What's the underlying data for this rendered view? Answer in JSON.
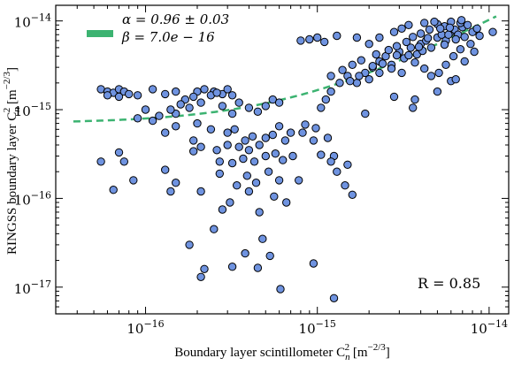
{
  "chart_data": {
    "type": "scatter",
    "xlabel": "Boundary layer scintillometer C",
    "xlabel_sub": "n",
    "xlabel_sup": "2",
    "xlabel_unit": " [m",
    "xlabel_unit_sup": "−2/3",
    "xlabel_unit_end": "]",
    "ylabel": "RINGSS boundary layer C",
    "ylabel_sub": "n",
    "ylabel_sup": "2",
    "ylabel_unit": " [m",
    "ylabel_unit_sup": "−2/3",
    "ylabel_unit_end": "]",
    "x_scale": "log",
    "y_scale": "log",
    "xlim": [
      3e-17,
      1.3e-14
    ],
    "ylim": [
      5e-18,
      1.5e-14
    ],
    "x_ticks": [
      {
        "value": 1e-16,
        "mantissa": "10",
        "exp": "−16"
      },
      {
        "value": 1e-15,
        "mantissa": "10",
        "exp": "−15"
      },
      {
        "value": 1e-14,
        "mantissa": "10",
        "exp": "−14"
      }
    ],
    "y_ticks": [
      {
        "value": 1e-17,
        "mantissa": "10",
        "exp": "−17"
      },
      {
        "value": 1e-16,
        "mantissa": "10",
        "exp": "−16"
      },
      {
        "value": 1e-15,
        "mantissa": "10",
        "exp": "−15"
      },
      {
        "value": 1e-14,
        "mantissa": "10",
        "exp": "−14"
      }
    ],
    "grid": false,
    "legend_position": "top-left",
    "legend_lines": [
      "α = 0.96 ± 0.03",
      "β = 7.0e − 16"
    ],
    "annotation": "R = 0.85",
    "fit": {
      "alpha": 0.96,
      "beta": 7e-16,
      "color": "#3cb371",
      "style": "dashed"
    },
    "marker_color": "#6f93e0",
    "marker_edge": "#000000",
    "points": [
      [
        5.5e-17,
        1.7e-15
      ],
      [
        6e-17,
        1.6e-15
      ],
      [
        6.5e-17,
        1.55e-15
      ],
      [
        7e-17,
        1.7e-15
      ],
      [
        7.5e-17,
        1.6e-15
      ],
      [
        8e-17,
        1.5e-15
      ],
      [
        6e-17,
        1.45e-15
      ],
      [
        7e-17,
        1.4e-15
      ],
      [
        9e-17,
        1.45e-15
      ],
      [
        1.1e-16,
        1.7e-15
      ],
      [
        1.3e-16,
        1.5e-15
      ],
      [
        1.5e-16,
        1.6e-15
      ],
      [
        1.7e-16,
        1.3e-15
      ],
      [
        2e-16,
        1.6e-15
      ],
      [
        2.2e-16,
        1.7e-15
      ],
      [
        2.5e-16,
        1.6e-15
      ],
      [
        2.8e-16,
        1.5e-15
      ],
      [
        3e-16,
        1.7e-15
      ],
      [
        3.2e-16,
        1.45e-15
      ],
      [
        2.4e-16,
        1.45e-15
      ],
      [
        2.6e-16,
        1.55e-15
      ],
      [
        1.9e-16,
        1.4e-15
      ],
      [
        1.6e-16,
        1.15e-15
      ],
      [
        1.8e-16,
        1.05e-15
      ],
      [
        2.1e-16,
        1.2e-15
      ],
      [
        1.5e-16,
        9e-16
      ],
      [
        1.4e-16,
        1e-15
      ],
      [
        1.2e-16,
        8.5e-16
      ],
      [
        1.1e-16,
        7.5e-16
      ],
      [
        1e-16,
        1e-15
      ],
      [
        9e-17,
        8e-16
      ],
      [
        1.5e-16,
        6.5e-16
      ],
      [
        1.3e-16,
        5.5e-16
      ],
      [
        2e-16,
        7e-16
      ],
      [
        2.4e-16,
        6e-16
      ],
      [
        2.8e-16,
        1.1e-15
      ],
      [
        3.2e-16,
        9e-16
      ],
      [
        3.5e-16,
        1.2e-15
      ],
      [
        4e-16,
        1.05e-15
      ],
      [
        4.5e-16,
        9.5e-16
      ],
      [
        5e-16,
        1.1e-15
      ],
      [
        5.5e-16,
        1.3e-15
      ],
      [
        6e-16,
        1.2e-15
      ],
      [
        3e-16,
        5.5e-16
      ],
      [
        3.3e-16,
        6e-16
      ],
      [
        3.8e-16,
        4.5e-16
      ],
      [
        4.2e-16,
        5e-16
      ],
      [
        4.6e-16,
        4e-16
      ],
      [
        5e-16,
        4.8e-16
      ],
      [
        5.5e-16,
        5.2e-16
      ],
      [
        6e-16,
        6.5e-16
      ],
      [
        6.5e-16,
        4.5e-16
      ],
      [
        7e-16,
        5.5e-16
      ],
      [
        4e-16,
        3.5e-16
      ],
      [
        3.5e-16,
        3.8e-16
      ],
      [
        3e-16,
        4e-16
      ],
      [
        2.6e-16,
        3.5e-16
      ],
      [
        2.7e-16,
        2.6e-16
      ],
      [
        3.2e-16,
        2.5e-16
      ],
      [
        3.7e-16,
        2.8e-16
      ],
      [
        4.3e-16,
        2.6e-16
      ],
      [
        5e-16,
        3e-16
      ],
      [
        5.7e-16,
        3.2e-16
      ],
      [
        6.3e-16,
        2.7e-16
      ],
      [
        7.2e-16,
        3e-16
      ],
      [
        2.1e-16,
        3.8e-16
      ],
      [
        1.9e-16,
        3.4e-16
      ],
      [
        5.5e-17,
        2.6e-16
      ],
      [
        7e-17,
        3.3e-16
      ],
      [
        1.9e-16,
        4.5e-16
      ],
      [
        7.5e-17,
        2.6e-16
      ],
      [
        8.5e-17,
        1.6e-16
      ],
      [
        1.3e-16,
        2.1e-16
      ],
      [
        1.5e-16,
        1.5e-16
      ],
      [
        1.4e-16,
        1.2e-16
      ],
      [
        2.1e-16,
        1.2e-16
      ],
      [
        2.7e-16,
        1.9e-16
      ],
      [
        3.4e-16,
        1.4e-16
      ],
      [
        3.9e-16,
        1.8e-16
      ],
      [
        4.4e-16,
        1.5e-16
      ],
      [
        5.2e-16,
        2e-16
      ],
      [
        6e-16,
        1.6e-16
      ],
      [
        6.5e-17,
        1.25e-16
      ],
      [
        3.1e-16,
        9e-17
      ],
      [
        4e-16,
        1.2e-16
      ],
      [
        4.6e-16,
        7e-17
      ],
      [
        5.6e-16,
        1.05e-16
      ],
      [
        6.6e-16,
        9e-17
      ],
      [
        7.8e-16,
        1.6e-16
      ],
      [
        2.8e-16,
        7.5e-17
      ],
      [
        2.5e-16,
        4.5e-17
      ],
      [
        1.8e-16,
        3e-17
      ],
      [
        3.8e-16,
        2.4e-17
      ],
      [
        4.8e-16,
        3.5e-17
      ],
      [
        2.2e-16,
        1.6e-17
      ],
      [
        2.1e-16,
        1.3e-17
      ],
      [
        3.2e-16,
        1.7e-17
      ],
      [
        4.5e-16,
        1.65e-17
      ],
      [
        6.1e-16,
        9.5e-18
      ],
      [
        9.5e-16,
        1.85e-17
      ],
      [
        1.25e-15,
        7.5e-18
      ],
      [
        5.3e-16,
        2.25e-17
      ],
      [
        8.2e-16,
        5.5e-16
      ],
      [
        9.5e-16,
        4.5e-16
      ],
      [
        1.05e-15,
        3.1e-16
      ],
      [
        1.25e-15,
        3e-16
      ],
      [
        1.3e-15,
        2e-16
      ],
      [
        1.5e-15,
        2.4e-16
      ],
      [
        1.45e-15,
        1.4e-16
      ],
      [
        1.6e-15,
        1.1e-16
      ],
      [
        1.2e-15,
        2.6e-16
      ],
      [
        1.15e-15,
        4.8e-16
      ],
      [
        9.8e-16,
        6.2e-16
      ],
      [
        8.5e-16,
        6.8e-16
      ],
      [
        1.05e-15,
        1.05e-15
      ],
      [
        1.12e-15,
        1.3e-15
      ],
      [
        1.2e-15,
        1.6e-15
      ],
      [
        1.35e-15,
        2e-15
      ],
      [
        1.5e-15,
        2.4e-15
      ],
      [
        1.7e-15,
        2e-15
      ],
      [
        1.9e-15,
        2.6e-15
      ],
      [
        2.1e-15,
        3e-15
      ],
      [
        2.3e-15,
        3.5e-15
      ],
      [
        2.5e-15,
        4e-15
      ],
      [
        2.7e-15,
        3.2e-15
      ],
      [
        3e-15,
        4.5e-15
      ],
      [
        3.2e-15,
        3.8e-15
      ],
      [
        3.5e-15,
        5e-15
      ],
      [
        3.8e-15,
        4.2e-15
      ],
      [
        4e-15,
        5.5e-15
      ],
      [
        4.3e-15,
        6e-15
      ],
      [
        4.6e-15,
        5e-15
      ],
      [
        5e-15,
        6.5e-15
      ],
      [
        5.3e-15,
        7e-15
      ],
      [
        5.6e-15,
        6e-15
      ],
      [
        6e-15,
        7.5e-15
      ],
      [
        6.3e-15,
        8e-15
      ],
      [
        6.6e-15,
        7e-15
      ],
      [
        7e-15,
        8.5e-15
      ],
      [
        7.5e-15,
        9e-15
      ],
      [
        8e-15,
        7.5e-15
      ],
      [
        8.5e-15,
        8.2e-15
      ],
      [
        6.8e-15,
        9.5e-15
      ],
      [
        6e-15,
        9.8e-15
      ],
      [
        5.5e-15,
        8.7e-15
      ],
      [
        5e-15,
        9.2e-15
      ],
      [
        4.5e-15,
        8e-15
      ],
      [
        4e-15,
        7.2e-15
      ],
      [
        3.6e-15,
        6.6e-15
      ],
      [
        3.3e-15,
        5.8e-15
      ],
      [
        2.9e-15,
        5.2e-15
      ],
      [
        2.6e-15,
        4.7e-15
      ],
      [
        2.2e-15,
        4.2e-15
      ],
      [
        1.8e-15,
        3.6e-15
      ],
      [
        1.6e-15,
        3.2e-15
      ],
      [
        1.4e-15,
        2.8e-15
      ],
      [
        1.2e-15,
        2.4e-15
      ],
      [
        1.1e-15,
        5.8e-15
      ],
      [
        9e-16,
        6.2e-15
      ],
      [
        8e-16,
        6e-15
      ],
      [
        1e-15,
        6.5e-15
      ],
      [
        1.3e-15,
        6.8e-15
      ],
      [
        1.7e-15,
        6.5e-15
      ],
      [
        2e-15,
        5.5e-15
      ],
      [
        2.3e-15,
        6.5e-15
      ],
      [
        2.8e-15,
        7.5e-15
      ],
      [
        3.1e-15,
        8.2e-15
      ],
      [
        3.4e-15,
        9e-15
      ],
      [
        4.2e-15,
        9.5e-15
      ],
      [
        4.8e-15,
        9.8e-15
      ],
      [
        5.2e-15,
        8.2e-15
      ],
      [
        5.8e-15,
        7e-15
      ],
      [
        6.4e-15,
        6.2e-15
      ],
      [
        7.2e-15,
        6.6e-15
      ],
      [
        8.8e-15,
        6.8e-15
      ],
      [
        1.05e-14,
        7.5e-15
      ],
      [
        7.8e-15,
        5.5e-15
      ],
      [
        6.8e-15,
        4.8e-15
      ],
      [
        6.2e-15,
        4e-15
      ],
      [
        5.6e-15,
        3.2e-15
      ],
      [
        5.1e-15,
        2.6e-15
      ],
      [
        4.6e-15,
        2.4e-15
      ],
      [
        4.2e-15,
        2.9e-15
      ],
      [
        3.7e-15,
        3.4e-15
      ],
      [
        3.1e-15,
        2.6e-15
      ],
      [
        2.7e-15,
        2.9e-15
      ],
      [
        2.3e-15,
        2.6e-15
      ],
      [
        2e-15,
        2.2e-15
      ],
      [
        1.75e-15,
        2.4e-15
      ],
      [
        6e-15,
        2.1e-15
      ],
      [
        6.4e-15,
        2.2e-15
      ],
      [
        5e-15,
        1.6e-15
      ],
      [
        3.7e-15,
        1.3e-15
      ],
      [
        3.6e-15,
        1.05e-15
      ],
      [
        2.8e-15,
        1.4e-15
      ],
      [
        1.9e-15,
        9e-16
      ],
      [
        7.2e-15,
        3.5e-15
      ],
      [
        8.2e-15,
        4.5e-15
      ],
      [
        5.5e-15,
        5.4e-15
      ],
      [
        4.1e-15,
        4.6e-15
      ],
      [
        3.4e-15,
        4.1e-15
      ],
      [
        2.4e-15,
        3.3e-15
      ],
      [
        1.55e-15,
        2.1e-15
      ],
      [
        6.9e-15,
        1.02e-14
      ],
      [
        5.9e-15,
        8.4e-15
      ],
      [
        4.4e-15,
        6.4e-15
      ],
      [
        3.9e-15,
        5.1e-15
      ],
      [
        2.9e-15,
        4.1e-15
      ],
      [
        2.1e-15,
        3.1e-15
      ]
    ]
  }
}
